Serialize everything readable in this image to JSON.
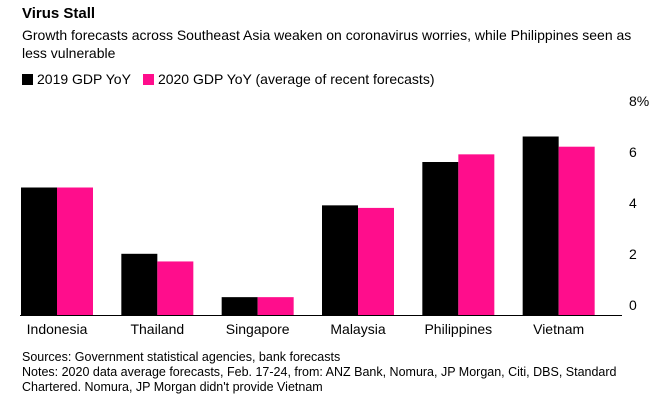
{
  "header": {
    "title": "Virus Stall",
    "subtitle": "Growth forecasts across Southeast Asia weaken on coronavirus worries, while Philippines seen as less vulnerable"
  },
  "colors": {
    "series_2019": "#000000",
    "series_2020": "#ff0d8c",
    "axis": "#000000"
  },
  "chart_data": {
    "type": "bar",
    "categories": [
      "Indonesia",
      "Thailand",
      "Singapore",
      "Malaysia",
      "Philippines",
      "Vietnam"
    ],
    "series": [
      {
        "name": "2019 GDP YoY",
        "values": [
          5.0,
          2.4,
          0.7,
          4.3,
          6.0,
          7.0
        ]
      },
      {
        "name": "2020 GDP YoY (average of recent forecasts)",
        "values": [
          5.0,
          2.1,
          0.7,
          4.2,
          6.3,
          6.6
        ]
      }
    ],
    "yticks": [
      "0",
      "2",
      "4",
      "6",
      "8%"
    ],
    "ylim": [
      0,
      8
    ],
    "legend_position": "top-left",
    "grid": false
  },
  "footer": {
    "sources": "Sources: Government statistical agencies, bank forecasts",
    "notes": "Notes: 2020 data average forecasts, Feb. 17-24, from: ANZ Bank, Nomura, JP Morgan, Citi, DBS, Standard Chartered. Nomura, JP Morgan didn't provide Vietnam"
  }
}
